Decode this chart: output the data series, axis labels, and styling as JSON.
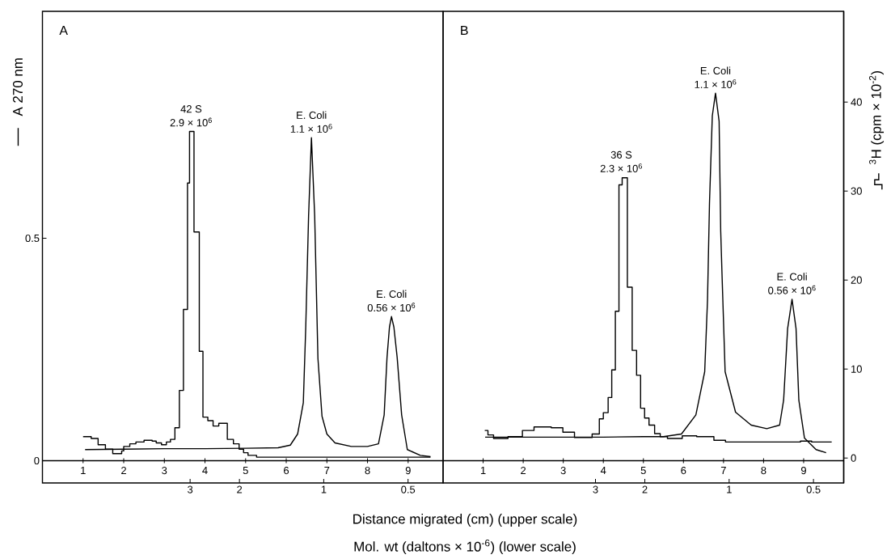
{
  "chart_data": [
    {
      "type": "line",
      "title": "A",
      "ylabel": "A 270 nm",
      "xlabel": "Distance migrated (cm) (upper scale)",
      "x2label": "Mol. wt (daltons × 10$^{-6}$) (lower scale)",
      "xlim": [
        0,
        9.86
      ],
      "xticks": [
        1,
        2,
        3,
        4,
        5,
        6,
        7,
        8,
        9
      ],
      "x2lim": [
        10.1,
        0.375
      ],
      "x2ticks": [
        3,
        2,
        1,
        0.5
      ],
      "log": "x2",
      "ylim": [
        -0.05,
        1.01
      ],
      "yticks": [
        0,
        0.5
      ],
      "y2lim": [
        -2.8,
        50.2
      ],
      "annotations": [
        {
          "text": "42 S",
          "x": 3.66,
          "y": 0.74
        },
        {
          "text": "2.9 × 10$^{6}$",
          "x": 3.66,
          "y": 0.74
        },
        {
          "text": "E. Coli",
          "x": 6.62,
          "y": 0.726
        },
        {
          "text": "1.1 × 10$^{6}$",
          "x": 6.62,
          "y": 0.726
        },
        {
          "text": "E. Coli",
          "x": 8.59,
          "y": 0.324
        },
        {
          "text": "0.56 × 10$^{6}$",
          "x": 8.59,
          "y": 0.324
        }
      ],
      "series": [
        {
          "color": "#000000",
          "x": [
            1.05,
            2,
            3,
            4,
            5,
            5.8,
            6.1,
            6.28,
            6.42,
            6.48,
            6.55,
            6.62,
            6.7,
            6.78,
            6.88,
            7.0,
            7.2,
            7.6,
            8.0,
            8.27,
            8.41,
            8.48,
            8.54,
            8.59,
            8.65,
            8.73,
            8.84,
            8.98,
            9.3,
            9.55
          ],
          "values": [
            0.025,
            0.026,
            0.027,
            0.027,
            0.028,
            0.029,
            0.035,
            0.06,
            0.13,
            0.3,
            0.55,
            0.726,
            0.55,
            0.23,
            0.1,
            0.06,
            0.04,
            0.032,
            0.032,
            0.038,
            0.103,
            0.232,
            0.3,
            0.324,
            0.3,
            0.232,
            0.103,
            0.025,
            0.012,
            0.009
          ]
        },
        {
          "type": "step",
          "axis": "y2",
          "color": "#000000",
          "x": [
            1.0,
            1.2,
            1.37,
            1.55,
            1.73,
            1.95,
            2.0,
            2.15,
            2.3,
            2.5,
            2.7,
            2.8,
            2.93,
            3.05,
            3.15,
            3.26,
            3.37,
            3.47,
            3.57,
            3.62,
            3.73,
            3.86,
            3.95,
            4.07,
            4.2,
            4.34,
            4.55,
            4.7,
            4.84,
            4.95,
            5.06,
            5.27,
            9.55
          ],
          "values": [
            2.4,
            2.2,
            1.5,
            1.0,
            0.5,
            0.8,
            1.3,
            1.6,
            1.8,
            2.0,
            1.9,
            1.7,
            1.5,
            1.8,
            2.1,
            3.4,
            7.6,
            16.7,
            30.9,
            36.7,
            25.4,
            12.0,
            4.6,
            4.2,
            3.6,
            3.9,
            2.1,
            1.6,
            1.0,
            0.6,
            0.3,
            0.1,
            0.1
          ]
        }
      ]
    },
    {
      "type": "line",
      "title": "B",
      "y2label": "$^{3}$H (cpm × 10$^{-2}$)",
      "xlim": [
        0,
        10
      ],
      "xticks": [
        1,
        2,
        3,
        4,
        5,
        6,
        7,
        8,
        9
      ],
      "x2lim": [
        10.5,
        0.39
      ],
      "x2ticks": [
        3,
        2,
        1,
        0.5
      ],
      "log": "x2",
      "ylim": [
        -0.05,
        1.01
      ],
      "y2lim": [
        -2.8,
        50.2
      ],
      "y2ticks": [
        0,
        10,
        20,
        30,
        40
      ],
      "annotations": [
        {
          "text": "36 S",
          "x": 4.45,
          "y": 0.637
        },
        {
          "text": "2.3 × 10$^{6}$",
          "x": 4.45,
          "y": 0.637
        },
        {
          "text": "E. Coli",
          "x": 6.8,
          "y": 0.826
        },
        {
          "text": "1.1 × 10$^{6}$",
          "x": 6.8,
          "y": 0.826
        },
        {
          "text": "E. Coli",
          "x": 8.71,
          "y": 0.363
        },
        {
          "text": "0.56 × 10$^{6}$",
          "x": 8.71,
          "y": 0.363
        }
      ],
      "series": [
        {
          "color": "#000000",
          "x": [
            1.05,
            2,
            3,
            4,
            5,
            5.5,
            5.95,
            6.31,
            6.53,
            6.6,
            6.65,
            6.72,
            6.8,
            6.89,
            6.93,
            6.96,
            7.04,
            7.3,
            7.69,
            8.08,
            8.4,
            8.5,
            8.6,
            8.71,
            8.81,
            8.88,
            9.02,
            9.31,
            9.56
          ],
          "values": [
            0.053,
            0.053,
            0.053,
            0.053,
            0.054,
            0.054,
            0.06,
            0.103,
            0.2,
            0.36,
            0.58,
            0.775,
            0.826,
            0.763,
            0.516,
            0.426,
            0.2,
            0.109,
            0.08,
            0.072,
            0.08,
            0.136,
            0.297,
            0.363,
            0.297,
            0.136,
            0.051,
            0.025,
            0.018
          ]
        },
        {
          "type": "step",
          "axis": "y2",
          "color": "#000000",
          "x": [
            1.04,
            1.12,
            1.26,
            1.62,
            1.98,
            2.27,
            2.7,
            2.99,
            3.28,
            3.5,
            3.72,
            3.9,
            4.0,
            4.12,
            4.21,
            4.3,
            4.39,
            4.47,
            4.6,
            4.72,
            4.83,
            4.93,
            5.03,
            5.14,
            5.28,
            5.42,
            5.6,
            5.97,
            6.33,
            6.76,
            7.05,
            8.49,
            8.92,
            9.2,
            9.7
          ],
          "values": [
            3.1,
            2.6,
            2.2,
            2.4,
            3.1,
            3.5,
            3.4,
            2.9,
            2.3,
            2.3,
            2.7,
            4.4,
            5.1,
            6.8,
            9.9,
            16.5,
            30.7,
            31.5,
            19.2,
            12.1,
            9.3,
            5.6,
            4.5,
            3.7,
            2.75,
            2.4,
            2.2,
            2.5,
            2.4,
            2.0,
            1.8,
            1.8,
            1.9,
            1.8,
            1.8
          ]
        }
      ]
    }
  ]
}
